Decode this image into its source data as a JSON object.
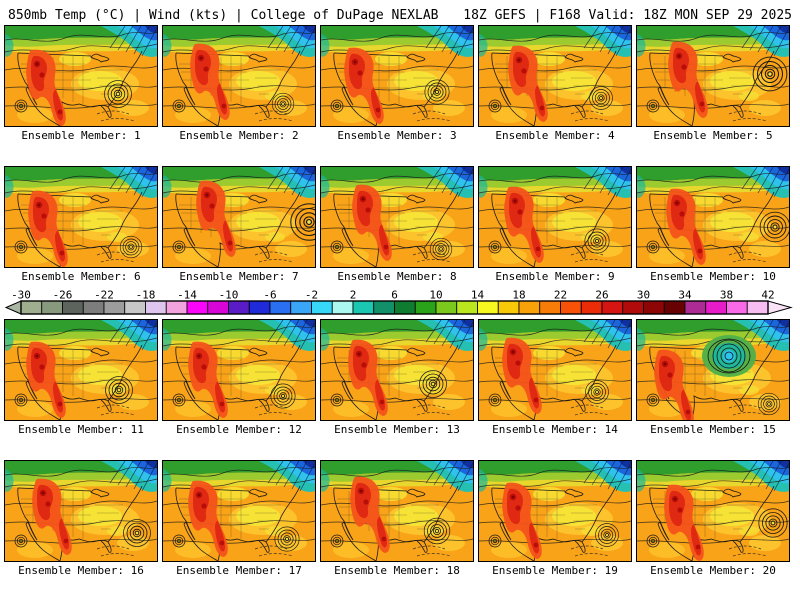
{
  "header": {
    "left": "850mb Temp (°C) | Wind (kts) | College of DuPage NEXLAB",
    "right": "18Z GEFS | F168 Valid: 18Z MON SEP 29 2025"
  },
  "panels": [
    {
      "label": "Ensemble Member: 1"
    },
    {
      "label": "Ensemble Member: 2"
    },
    {
      "label": "Ensemble Member: 3"
    },
    {
      "label": "Ensemble Member: 4"
    },
    {
      "label": "Ensemble Member: 5"
    },
    {
      "label": "Ensemble Member: 6"
    },
    {
      "label": "Ensemble Member: 7"
    },
    {
      "label": "Ensemble Member: 8"
    },
    {
      "label": "Ensemble Member: 9"
    },
    {
      "label": "Ensemble Member: 10"
    },
    {
      "label": "Ensemble Member: 11"
    },
    {
      "label": "Ensemble Member: 12"
    },
    {
      "label": "Ensemble Member: 13"
    },
    {
      "label": "Ensemble Member: 14"
    },
    {
      "label": "Ensemble Member: 15"
    },
    {
      "label": "Ensemble Member: 16"
    },
    {
      "label": "Ensemble Member: 17"
    },
    {
      "label": "Ensemble Member: 18"
    },
    {
      "label": "Ensemble Member: 19"
    },
    {
      "label": "Ensemble Member: 20"
    }
  ],
  "colorbar": {
    "units": "°C",
    "min": -30,
    "max": 42,
    "cell_step": 2,
    "label_step": 4,
    "tick_labels": [
      "-30",
      "-26",
      "-22",
      "-18",
      "-14",
      "-10",
      "-6",
      "-2",
      "2",
      "6",
      "10",
      "14",
      "18",
      "22",
      "26",
      "30",
      "34",
      "38",
      "42"
    ],
    "cell_colors": [
      "#9fae8e",
      "#879a7e",
      "#5d645d",
      "#7d7d7d",
      "#9d9d9d",
      "#c7c7c7",
      "#ddc5ee",
      "#f2a3df",
      "#fa05fa",
      "#d805d8",
      "#5a1cc7",
      "#1f2ad9",
      "#2a6ff2",
      "#3aa6f8",
      "#37d7f8",
      "#aaf8ef",
      "#1cc7b2",
      "#129069",
      "#0f7c31",
      "#2aa31b",
      "#7cc91d",
      "#bae71d",
      "#f8f821",
      "#f8c908",
      "#f9a108",
      "#f87c08",
      "#f85108",
      "#ea2d08",
      "#d41511",
      "#b20b0b",
      "#8e0505",
      "#680202",
      "#ad2b94",
      "#e51cc7",
      "#f86ae8",
      "#f8bdf0"
    ],
    "left_arrow_color": "#aab5a2",
    "right_arrow_color": "#fbe3f7"
  },
  "chart_data": {
    "type": "heatmap",
    "title": "850mb Temp (°C) | Wind (kts)",
    "source": "College of DuPage NEXLAB",
    "model_run": "18Z GEFS",
    "forecast_hour": "F168",
    "valid": "18Z MON SEP 29 2025",
    "ensemble_members": [
      1,
      2,
      3,
      4,
      5,
      6,
      7,
      8,
      9,
      10,
      11,
      12,
      13,
      14,
      15,
      16,
      17,
      18,
      19,
      20
    ],
    "panel_grid": {
      "rows": 4,
      "cols": 5
    },
    "colorbar_ticks": [
      -30,
      -26,
      -22,
      -18,
      -14,
      -10,
      -6,
      -2,
      2,
      6,
      10,
      14,
      18,
      22,
      26,
      30,
      34,
      38,
      42
    ],
    "colorbar_units": "°C",
    "colorbar_range": [
      -30,
      42
    ],
    "colorbar_cell_step": 2,
    "legend_position": "between rows 2 and 3"
  }
}
